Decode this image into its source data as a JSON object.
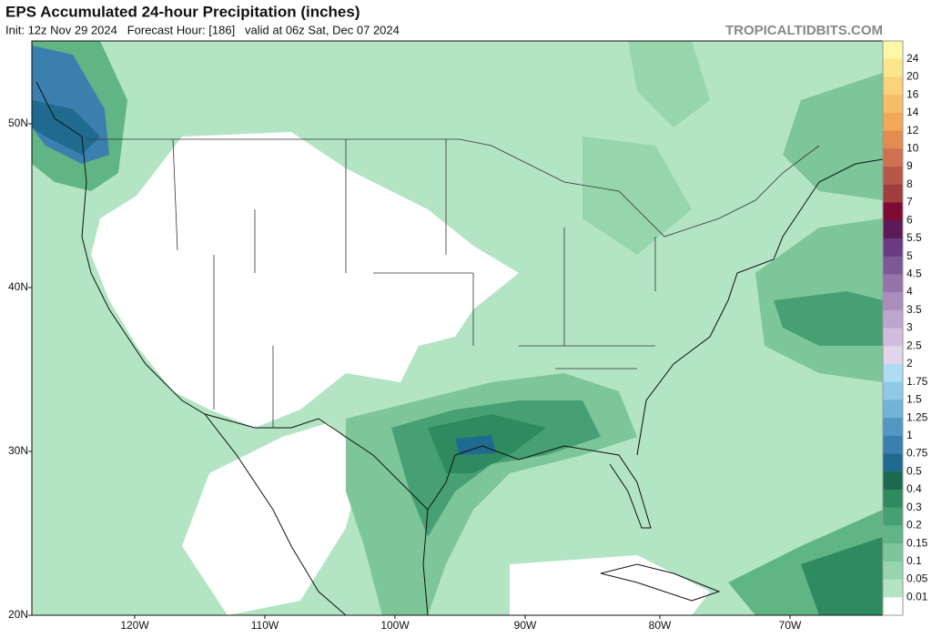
{
  "header": {
    "title": "EPS Accumulated 24-hour Precipitation (inches)",
    "subtitle": "Init: 12z Nov 29 2024   Forecast Hour: [186]   valid at 06z Sat, Dec 07 2024",
    "source": "TROPICALTIDBITS.COM"
  },
  "map": {
    "lat_labels": [
      "50N",
      "40N",
      "30N",
      "20N"
    ],
    "lon_labels": [
      "120W",
      "110W",
      "100W",
      "90W",
      "80W",
      "70W"
    ]
  },
  "colorbar": {
    "levels": [
      24,
      20,
      16,
      14,
      12,
      10,
      9,
      8,
      7,
      6,
      5.5,
      5,
      4.5,
      4,
      3.5,
      3,
      2.5,
      2,
      1.75,
      1.5,
      1.25,
      1,
      0.75,
      0.5,
      0.4,
      0.3,
      0.2,
      0.15,
      0.1,
      0.05,
      0.01
    ],
    "colors": [
      "#fdf7a6",
      "#fbe68c",
      "#f9d27a",
      "#f6bd68",
      "#f2a857",
      "#e48c50",
      "#cf7050",
      "#b85648",
      "#a03e3f",
      "#7e0b35",
      "#5c1a58",
      "#6a3b82",
      "#7e5795",
      "#9574aa",
      "#a98dbd",
      "#bda6cd",
      "#cfbddb",
      "#e2d4e9",
      "#aedcf2",
      "#8ecae6",
      "#6fb4d6",
      "#5398c2",
      "#3a7fae",
      "#1e6b8f",
      "#1b6a4e",
      "#2f8a5f",
      "#47a073",
      "#60b585",
      "#7cc699",
      "#97d5ad",
      "#b3e4c4",
      "#ffffff"
    ]
  }
}
